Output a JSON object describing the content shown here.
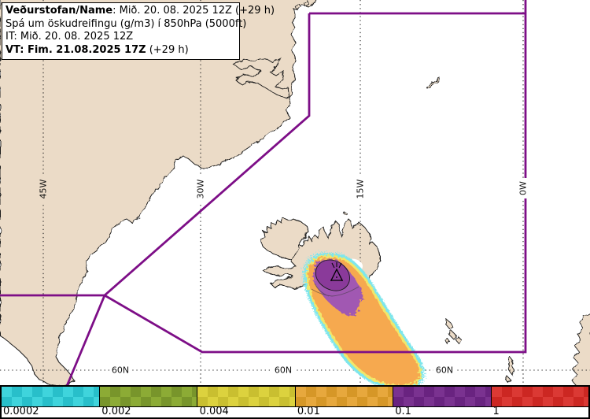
{
  "header": {
    "name_label": "Veðurstofan/Name",
    "name_value": ": Mið. 20. 08. 2025 12Z (+29 h)",
    "subtitle": "Spá um öskudreifingu (g/m3) í 850hPa (5000ft)",
    "init_time": "IT: Mið. 20. 08. 2025 12Z",
    "valid_time_bold": "VT: Fim. 21.08.2025 17Z",
    "valid_time_rest": " (+29 h)"
  },
  "map": {
    "meridian_labels": [
      "45W",
      "30W",
      "15W",
      "0W"
    ],
    "parallel_label": "60N"
  },
  "legend": {
    "values": [
      "0.0002",
      "0.002",
      "0.004",
      "0.01",
      "0.1",
      "1"
    ],
    "cell_colors": [
      {
        "light": "#3fd4dc",
        "dark": "#28bfca"
      },
      {
        "light": "#8cab35",
        "dark": "#78952b"
      },
      {
        "light": "#dcd23e",
        "dark": "#c9bf30"
      },
      {
        "light": "#e7a83d",
        "dark": "#d69727"
      },
      {
        "light": "#7a3290",
        "dark": "#692380"
      },
      {
        "light": "#db3934",
        "dark": "#cc2722"
      }
    ]
  },
  "colors": {
    "fir_boundary": "#7d0e87",
    "land": "#ebdbc7",
    "coastline": "#1a1a1a",
    "graticule": "#222222",
    "plume_orange": "#f6a950",
    "plume_yellow": "#f1e76a",
    "plume_cyan": "#7ee6ec",
    "plume_purple": "#a158b2",
    "plume_purple_dark": "#8a3a9a",
    "glacier": "#ffffff"
  }
}
